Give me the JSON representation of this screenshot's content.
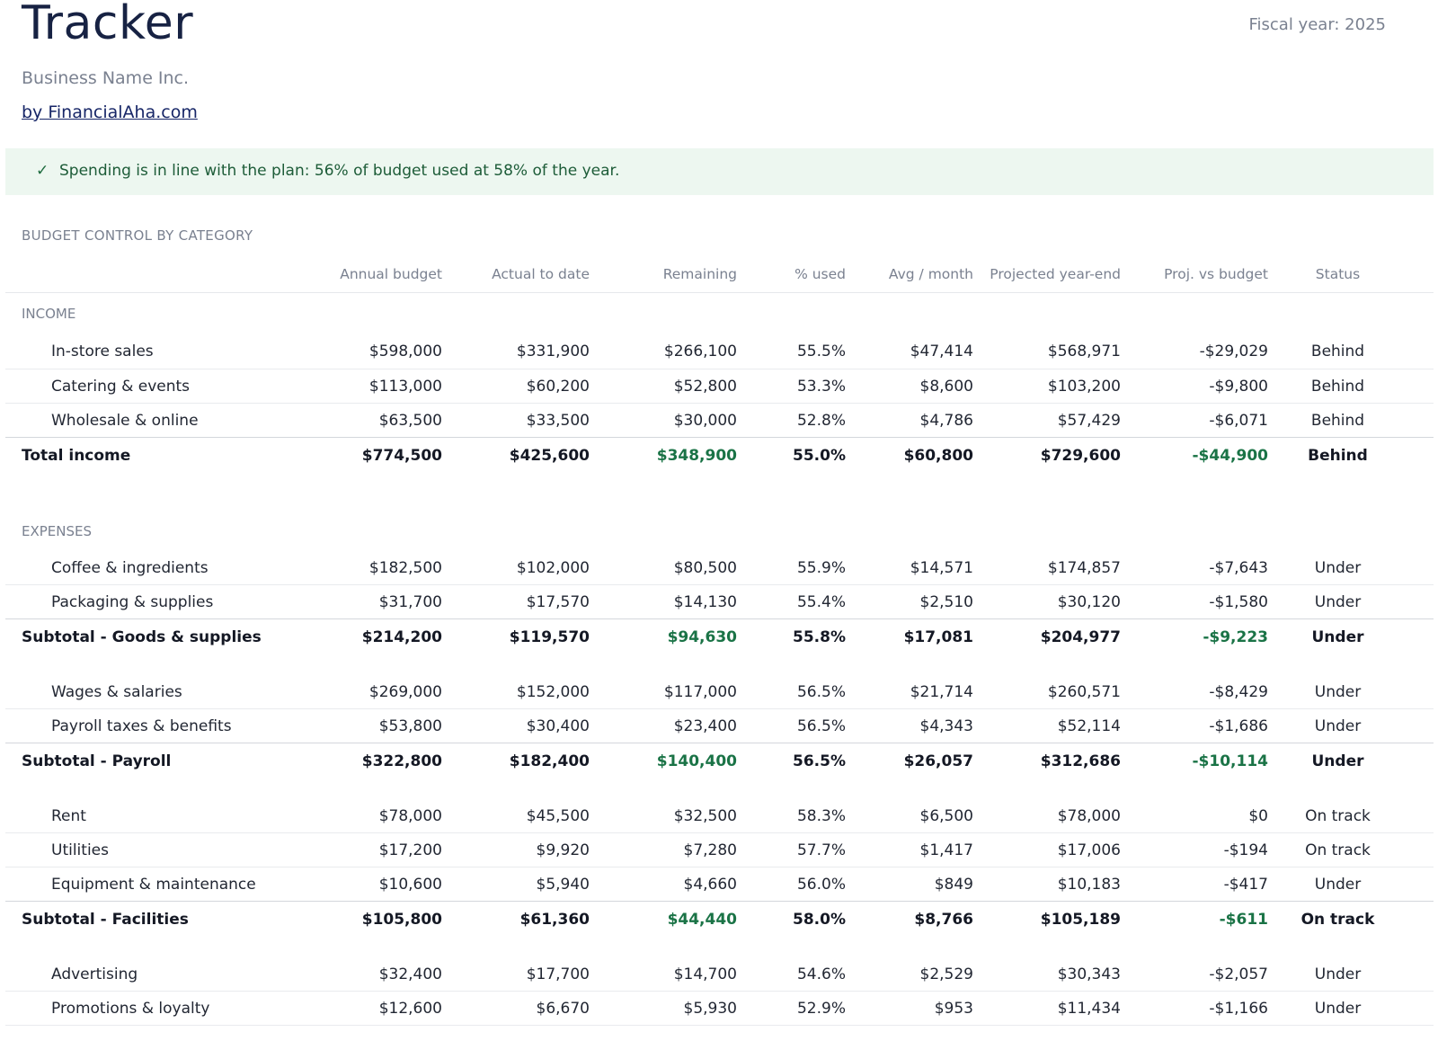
{
  "header": {
    "title": "Tracker",
    "fiscal_year": "Fiscal year: 2025",
    "business_name": "Business Name Inc.",
    "byline": "by FinancialAha.com"
  },
  "banner": {
    "icon": "check-icon",
    "message": "Spending is in line with the plan: 56% of budget used at 58% of the year."
  },
  "section_title": "BUDGET CONTROL BY CATEGORY",
  "columns": [
    "Annual budget",
    "Actual to date",
    "Remaining",
    "% used",
    "Avg / month",
    "Projected year-end",
    "Proj. vs budget",
    "Status"
  ],
  "colors": {
    "positive": "#1f7a4a",
    "negative": "#b3262d",
    "banner_bg": "#edf7f0"
  },
  "income": {
    "label": "INCOME",
    "rows": [
      {
        "name": "In-store sales",
        "budget": "$598,000",
        "actual": "$331,900",
        "remaining": "$266,100",
        "pct": "55.5%",
        "avg": "$47,414",
        "proj": "$568,971",
        "var": "-$29,029",
        "status": "Behind"
      },
      {
        "name": "Catering & events",
        "budget": "$113,000",
        "actual": "$60,200",
        "remaining": "$52,800",
        "pct": "53.3%",
        "avg": "$8,600",
        "proj": "$103,200",
        "var": "-$9,800",
        "status": "Behind"
      },
      {
        "name": "Wholesale & online",
        "budget": "$63,500",
        "actual": "$33,500",
        "remaining": "$30,000",
        "pct": "52.8%",
        "avg": "$4,786",
        "proj": "$57,429",
        "var": "-$6,071",
        "status": "Behind"
      }
    ],
    "total": {
      "name": "Total income",
      "budget": "$774,500",
      "actual": "$425,600",
      "remaining": "$348,900",
      "pct": "55.0%",
      "avg": "$60,800",
      "proj": "$729,600",
      "var": "-$44,900",
      "status": "Behind"
    }
  },
  "expenses": {
    "label": "EXPENSES",
    "goods": {
      "rows": [
        {
          "name": "Coffee & ingredients",
          "budget": "$182,500",
          "actual": "$102,000",
          "remaining": "$80,500",
          "pct": "55.9%",
          "avg": "$14,571",
          "proj": "$174,857",
          "var": "-$7,643",
          "status": "Under"
        },
        {
          "name": "Packaging & supplies",
          "budget": "$31,700",
          "actual": "$17,570",
          "remaining": "$14,130",
          "pct": "55.4%",
          "avg": "$2,510",
          "proj": "$30,120",
          "var": "-$1,580",
          "status": "Under"
        }
      ],
      "subtotal": {
        "name": "Subtotal - Goods & supplies",
        "budget": "$214,200",
        "actual": "$119,570",
        "remaining": "$94,630",
        "pct": "55.8%",
        "avg": "$17,081",
        "proj": "$204,977",
        "var": "-$9,223",
        "status": "Under"
      }
    },
    "payroll": {
      "rows": [
        {
          "name": "Wages & salaries",
          "budget": "$269,000",
          "actual": "$152,000",
          "remaining": "$117,000",
          "pct": "56.5%",
          "avg": "$21,714",
          "proj": "$260,571",
          "var": "-$8,429",
          "status": "Under"
        },
        {
          "name": "Payroll taxes & benefits",
          "budget": "$53,800",
          "actual": "$30,400",
          "remaining": "$23,400",
          "pct": "56.5%",
          "avg": "$4,343",
          "proj": "$52,114",
          "var": "-$1,686",
          "status": "Under"
        }
      ],
      "subtotal": {
        "name": "Subtotal - Payroll",
        "budget": "$322,800",
        "actual": "$182,400",
        "remaining": "$140,400",
        "pct": "56.5%",
        "avg": "$26,057",
        "proj": "$312,686",
        "var": "-$10,114",
        "status": "Under"
      }
    },
    "facilities": {
      "rows": [
        {
          "name": "Rent",
          "budget": "$78,000",
          "actual": "$45,500",
          "remaining": "$32,500",
          "pct": "58.3%",
          "avg": "$6,500",
          "proj": "$78,000",
          "var": "$0",
          "status": "On track"
        },
        {
          "name": "Utilities",
          "budget": "$17,200",
          "actual": "$9,920",
          "remaining": "$7,280",
          "pct": "57.7%",
          "avg": "$1,417",
          "proj": "$17,006",
          "var": "-$194",
          "status": "On track"
        },
        {
          "name": "Equipment & maintenance",
          "budget": "$10,600",
          "actual": "$5,940",
          "remaining": "$4,660",
          "pct": "56.0%",
          "avg": "$849",
          "proj": "$10,183",
          "var": "-$417",
          "status": "Under"
        }
      ],
      "subtotal": {
        "name": "Subtotal - Facilities",
        "budget": "$105,800",
        "actual": "$61,360",
        "remaining": "$44,440",
        "pct": "58.0%",
        "avg": "$8,766",
        "proj": "$105,189",
        "var": "-$611",
        "status": "On track"
      }
    },
    "marketing": {
      "rows": [
        {
          "name": "Advertising",
          "budget": "$32,400",
          "actual": "$17,700",
          "remaining": "$14,700",
          "pct": "54.6%",
          "avg": "$2,529",
          "proj": "$30,343",
          "var": "-$2,057",
          "status": "Under"
        },
        {
          "name": "Promotions & loyalty",
          "budget": "$12,600",
          "actual": "$6,670",
          "remaining": "$5,930",
          "pct": "52.9%",
          "avg": "$953",
          "proj": "$11,434",
          "var": "-$1,166",
          "status": "Under"
        }
      ]
    }
  }
}
